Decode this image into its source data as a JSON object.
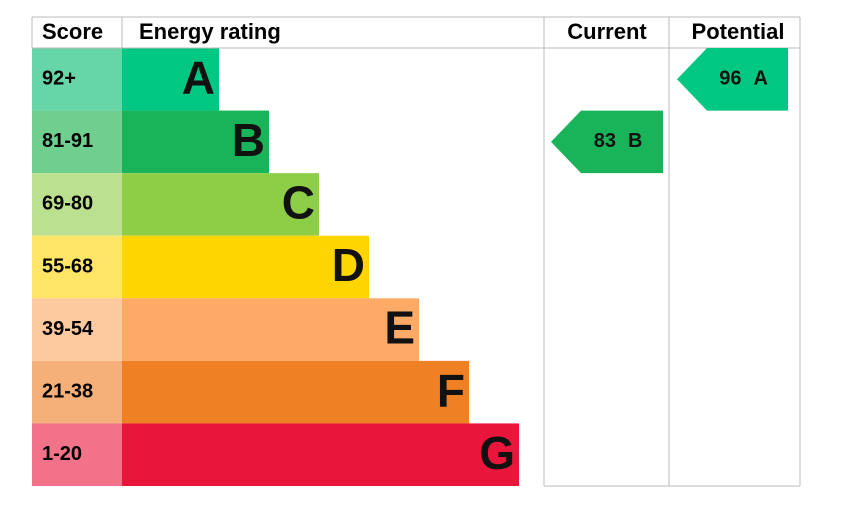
{
  "header": {
    "score": "Score",
    "rating": "Energy rating",
    "current": "Current",
    "potential": "Potential"
  },
  "bands": [
    {
      "score": "92+",
      "letter": "A",
      "color": "#00c781",
      "score_color": "#66d5a8"
    },
    {
      "score": "81-91",
      "letter": "B",
      "color": "#19b459",
      "score_color": "#6fcf8f"
    },
    {
      "score": "69-80",
      "letter": "C",
      "color": "#8dce46",
      "score_color": "#bbe08f"
    },
    {
      "score": "55-68",
      "letter": "D",
      "color": "#ffd500",
      "score_color": "#ffe566"
    },
    {
      "score": "39-54",
      "letter": "E",
      "color": "#fcaa65",
      "score_color": "#fdcaa0"
    },
    {
      "score": "21-38",
      "letter": "F",
      "color": "#ef8023",
      "score_color": "#f5b07a"
    },
    {
      "score": "1-20",
      "letter": "G",
      "color": "#e9153b",
      "score_color": "#f27389"
    }
  ],
  "current": {
    "value": "83",
    "letter": "B"
  },
  "potential": {
    "value": "96",
    "letter": "A"
  }
}
